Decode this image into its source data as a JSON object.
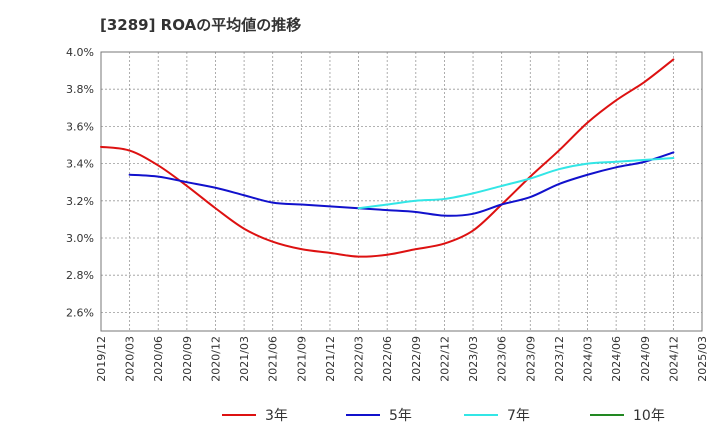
{
  "chart_data": {
    "type": "line",
    "title": "[3289]  ROAの平均値の推移",
    "xlabel": "",
    "ylabel": "",
    "x_ticks": [
      "2019/12",
      "2020/03",
      "2020/06",
      "2020/09",
      "2020/12",
      "2021/03",
      "2021/06",
      "2021/09",
      "2021/12",
      "2022/03",
      "2022/06",
      "2022/09",
      "2022/12",
      "2023/03",
      "2023/06",
      "2023/09",
      "2023/12",
      "2024/03",
      "2024/06",
      "2024/09",
      "2024/12",
      "2025/03"
    ],
    "y_ticks": [
      "2.6%",
      "2.8%",
      "3.0%",
      "3.2%",
      "3.4%",
      "3.6%",
      "3.8%",
      "4.0%"
    ],
    "ylim": [
      2.5,
      4.0
    ],
    "grid": true,
    "legend_position": "bottom",
    "series": [
      {
        "name": "3年",
        "color": "#dd1111",
        "x": [
          "2019/12",
          "2020/03",
          "2020/06",
          "2020/09",
          "2020/12",
          "2021/03",
          "2021/06",
          "2021/09",
          "2021/12",
          "2022/03",
          "2022/06",
          "2022/09",
          "2022/12",
          "2023/03",
          "2023/06",
          "2023/09",
          "2023/12",
          "2024/03",
          "2024/06",
          "2024/09",
          "2024/12"
        ],
        "values": [
          3.49,
          3.47,
          3.39,
          3.28,
          3.16,
          3.05,
          2.98,
          2.94,
          2.92,
          2.9,
          2.91,
          2.94,
          2.97,
          3.04,
          3.18,
          3.33,
          3.47,
          3.62,
          3.74,
          3.84,
          3.96
        ]
      },
      {
        "name": "5年",
        "color": "#1111cc",
        "x": [
          "2020/03",
          "2020/06",
          "2020/09",
          "2020/12",
          "2021/03",
          "2021/06",
          "2021/09",
          "2021/12",
          "2022/03",
          "2022/06",
          "2022/09",
          "2022/12",
          "2023/03",
          "2023/06",
          "2023/09",
          "2023/12",
          "2024/03",
          "2024/06",
          "2024/09",
          "2024/12"
        ],
        "values": [
          3.34,
          3.33,
          3.3,
          3.27,
          3.23,
          3.19,
          3.18,
          3.17,
          3.16,
          3.15,
          3.14,
          3.12,
          3.13,
          3.18,
          3.22,
          3.29,
          3.34,
          3.38,
          3.41,
          3.46
        ]
      },
      {
        "name": "7年",
        "color": "#33e6e6",
        "x": [
          "2022/03",
          "2022/06",
          "2022/09",
          "2022/12",
          "2023/03",
          "2023/06",
          "2023/09",
          "2023/12",
          "2024/03",
          "2024/06",
          "2024/09",
          "2024/12"
        ],
        "values": [
          3.16,
          3.18,
          3.2,
          3.21,
          3.24,
          3.28,
          3.32,
          3.37,
          3.4,
          3.41,
          3.42,
          3.43
        ]
      },
      {
        "name": "10年",
        "color": "#228822",
        "x": [],
        "values": []
      }
    ]
  }
}
